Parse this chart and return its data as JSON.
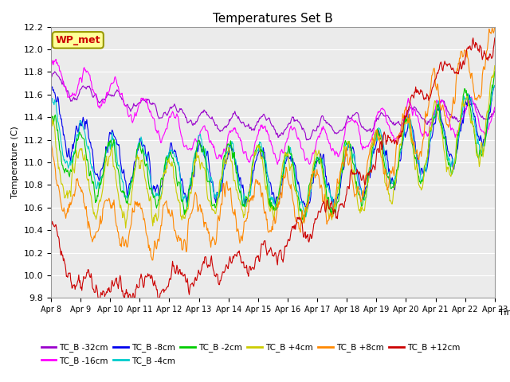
{
  "title": "Temperatures Set B",
  "xlabel": "Time",
  "ylabel": "Temperature (C)",
  "ylim": [
    9.8,
    12.2
  ],
  "series": [
    {
      "label": "TC_B -32cm",
      "color": "#9900cc"
    },
    {
      "label": "TC_B -16cm",
      "color": "#ff00ff"
    },
    {
      "label": "TC_B -8cm",
      "color": "#0000ee"
    },
    {
      "label": "TC_B -4cm",
      "color": "#00cccc"
    },
    {
      "label": "TC_B -2cm",
      "color": "#00cc00"
    },
    {
      "label": "TC_B +4cm",
      "color": "#cccc00"
    },
    {
      "label": "TC_B +8cm",
      "color": "#ff8800"
    },
    {
      "label": "TC_B +12cm",
      "color": "#cc0000"
    }
  ],
  "xtick_labels": [
    "Apr 8",
    "Apr 9",
    "Apr 10",
    "Apr 11",
    "Apr 12",
    "Apr 13",
    "Apr 14",
    "Apr 15",
    "Apr 16",
    "Apr 17",
    "Apr 18",
    "Apr 19",
    "Apr 20",
    "Apr 21",
    "Apr 22",
    "Apr 23"
  ],
  "annotation_text": "WP_met",
  "annotation_color": "#cc0000",
  "annotation_bg": "#ffff99",
  "background_color": "#ebebeb",
  "grid_color": "#ffffff",
  "linewidth": 0.8,
  "figsize": [
    6.4,
    4.8
  ],
  "dpi": 100
}
